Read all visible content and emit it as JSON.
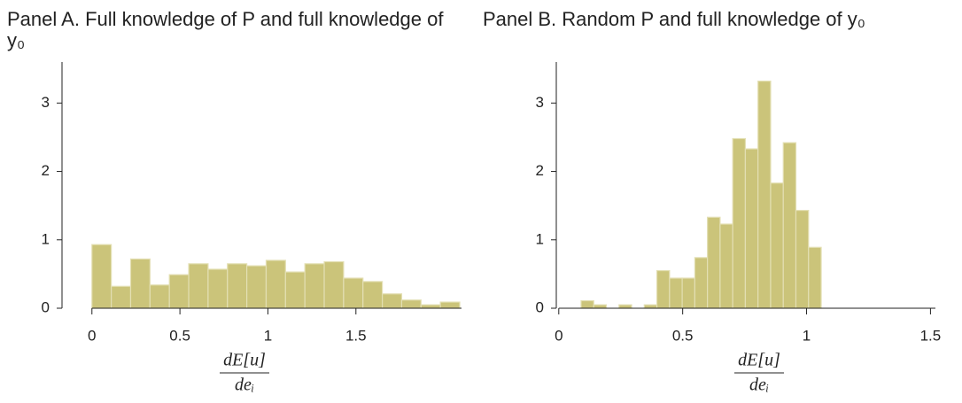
{
  "chart_data": [
    {
      "type": "histogram",
      "title": "Panel A. Full knowledge of P and full knowledge of y₀",
      "xlabel_numerator": "dE[u]",
      "xlabel_denominator": "deᵢ",
      "bins": [
        0,
        0.11,
        0.22,
        0.33,
        0.44,
        0.55,
        0.66,
        0.77,
        0.88,
        0.99,
        1.1,
        1.21,
        1.32,
        1.43,
        1.54,
        1.65,
        1.76,
        1.87,
        1.98,
        2.09
      ],
      "values": [
        0.93,
        0.32,
        0.72,
        0.34,
        0.49,
        0.65,
        0.57,
        0.65,
        0.62,
        0.7,
        0.53,
        0.65,
        0.68,
        0.44,
        0.39,
        0.21,
        0.12,
        0.05,
        0.09
      ],
      "color": "#cbc47a",
      "xlim": [
        -0.17,
        2.1
      ],
      "xticks": [
        0,
        0.5,
        1,
        1.5
      ],
      "ylim": [
        0,
        3.6
      ],
      "yticks": [
        0,
        1,
        2,
        3
      ]
    },
    {
      "type": "histogram",
      "title": "Panel B. Random P and full knowledge of y₀",
      "xlabel_numerator": "dE[u]",
      "xlabel_denominator": "deᵢ",
      "bins": [
        0.09,
        0.141,
        0.192,
        0.243,
        0.294,
        0.345,
        0.396,
        0.447,
        0.498,
        0.549,
        0.6,
        0.651,
        0.702,
        0.753,
        0.804,
        0.855,
        0.906,
        0.957,
        1.008,
        1.059
      ],
      "values": [
        0.11,
        0.05,
        0,
        0.05,
        0,
        0.05,
        0.55,
        0.44,
        0.44,
        0.74,
        1.33,
        1.23,
        2.48,
        2.33,
        3.32,
        1.83,
        2.42,
        1.43,
        0.89
      ],
      "color": "#cbc47a",
      "xlim": [
        -0.01,
        1.52
      ],
      "xticks": [
        0,
        0.5,
        1,
        1.5
      ],
      "ylim": [
        0,
        3.6
      ],
      "yticks": [
        0,
        1,
        2,
        3
      ]
    }
  ]
}
